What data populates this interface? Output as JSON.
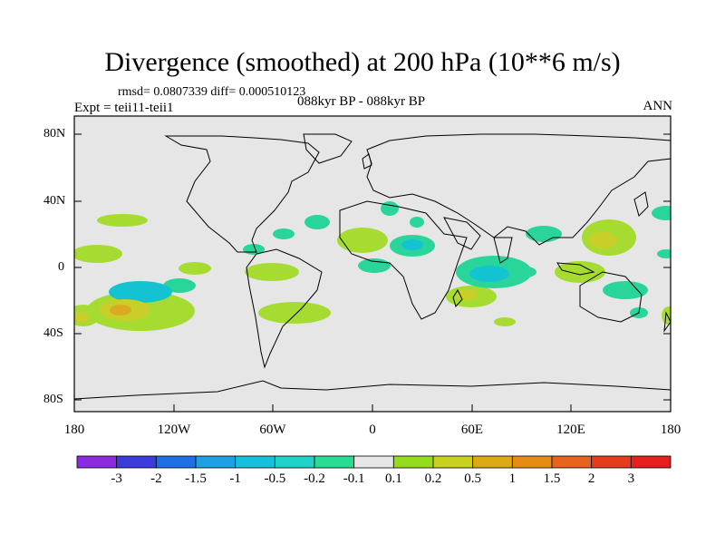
{
  "title": "Divergence (smoothed) at 200 hPa (10**6 m/s)",
  "stats": "rmsd= 0.0807339 diff= 0.000510123",
  "experiment": "Expt = teii11-teii1",
  "period": "088kyr BP - 088kyr BP",
  "season": "ANN",
  "y_ticks": [
    "80N",
    "40N",
    "0",
    "40S",
    "80S"
  ],
  "x_ticks": [
    "180",
    "120W",
    "60W",
    "0",
    "60E",
    "120E",
    "180"
  ],
  "colorbar": {
    "labels": [
      "-3",
      "-2",
      "-1.5",
      "-1",
      "-0.5",
      "-0.2",
      "-0.1",
      "0.1",
      "0.2",
      "0.5",
      "1",
      "1.5",
      "2",
      "3"
    ],
    "colors": [
      "#8a2be2",
      "#3c3cdc",
      "#1e6ee6",
      "#1ea0e6",
      "#14c0dc",
      "#1ed2c8",
      "#28dc96",
      "#e6e6e6",
      "#96dc1e",
      "#c8d21e",
      "#dcaa14",
      "#e68c14",
      "#e6641e",
      "#e63c1e",
      "#e61e1e"
    ]
  },
  "background_color": "#e6e6e6"
}
